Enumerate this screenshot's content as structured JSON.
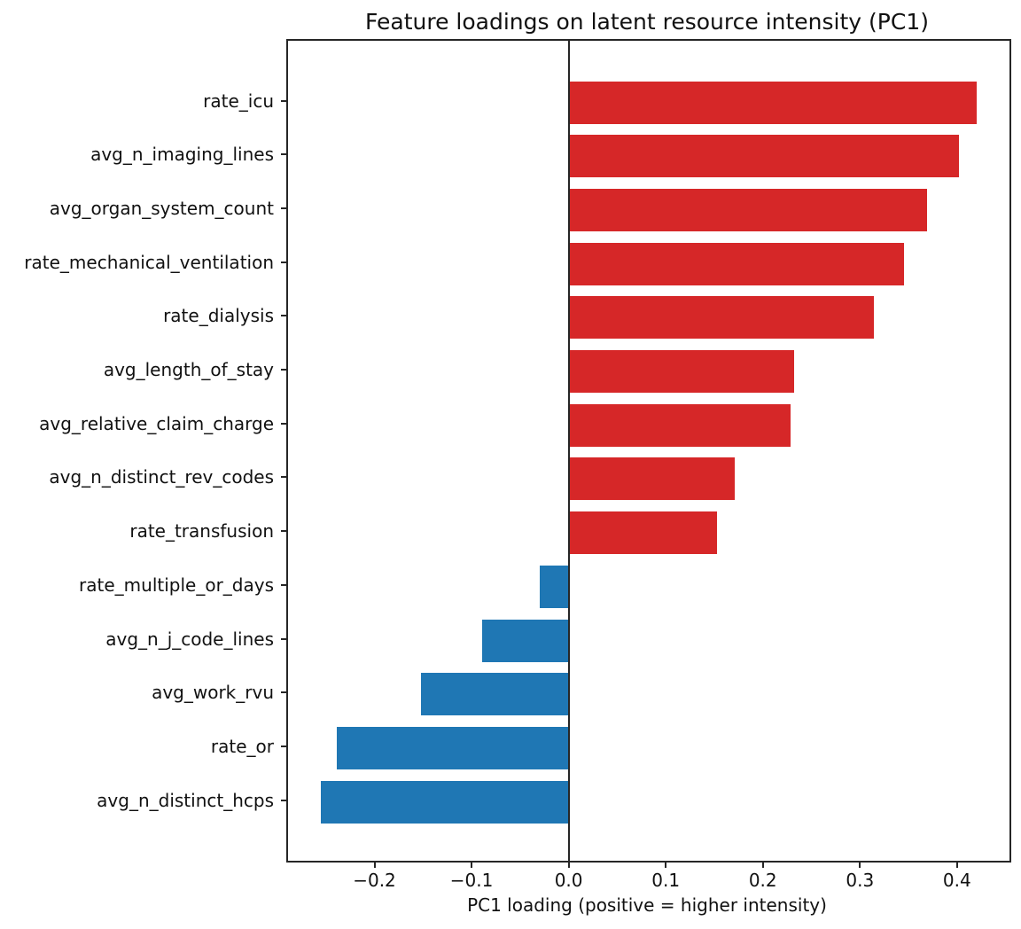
{
  "figure": {
    "background": "#ffffff"
  },
  "chart_data": {
    "type": "bar",
    "orientation": "horizontal",
    "title": "Feature loadings on latent resource intensity (PC1)",
    "xlabel": "PC1 loading (positive = higher intensity)",
    "ylabel": "",
    "categories": [
      "rate_icu",
      "avg_n_imaging_lines",
      "avg_organ_system_count",
      "rate_mechanical_ventilation",
      "rate_dialysis",
      "avg_length_of_stay",
      "avg_relative_claim_charge",
      "avg_n_distinct_rev_codes",
      "rate_transfusion",
      "rate_multiple_or_days",
      "avg_n_j_code_lines",
      "avg_work_rvu",
      "rate_or",
      "avg_n_distinct_hcps"
    ],
    "values": [
      0.42,
      0.402,
      0.369,
      0.345,
      0.314,
      0.232,
      0.229,
      0.171,
      0.153,
      -0.03,
      -0.089,
      -0.152,
      -0.239,
      -0.255
    ],
    "positive_color": "#d62728",
    "negative_color": "#1f77b4",
    "axis_color": "#262626",
    "xlim": [
      -0.289,
      0.454
    ],
    "xticks": [
      -0.2,
      -0.1,
      0.0,
      0.1,
      0.2,
      0.3,
      0.4
    ],
    "xtick_labels": [
      "−0.2",
      "−0.1",
      "0.0",
      "0.1",
      "0.2",
      "0.3",
      "0.4"
    ],
    "grid": false,
    "legend": null,
    "zero_line": true
  }
}
